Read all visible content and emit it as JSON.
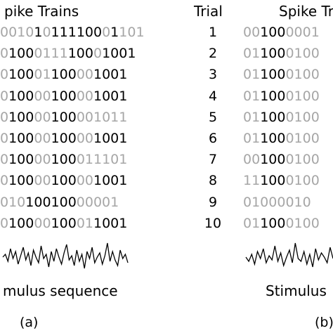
{
  "left": {
    "header": "pike Trains",
    "rows": [
      [
        [
          "g",
          "0010"
        ],
        [
          "k",
          "1"
        ],
        [
          "g",
          "0"
        ],
        [
          "k",
          "111"
        ],
        [
          "k",
          "100"
        ],
        [
          "g",
          "0"
        ],
        [
          "k",
          "1"
        ],
        [
          "g",
          "101"
        ]
      ],
      [
        [
          "g",
          "0"
        ],
        [
          "k",
          "100"
        ],
        [
          "g",
          "0111"
        ],
        [
          "k",
          "100"
        ],
        [
          "g",
          "0"
        ],
        [
          "k",
          "100"
        ],
        [
          "k",
          "1"
        ]
      ],
      [
        [
          "g",
          "0"
        ],
        [
          "k",
          "100"
        ],
        [
          "g",
          "01"
        ],
        [
          "k",
          "100"
        ],
        [
          "g",
          "00"
        ],
        [
          "k",
          "100"
        ],
        [
          "k",
          "1"
        ]
      ],
      [
        [
          "g",
          "0"
        ],
        [
          "k",
          "100"
        ],
        [
          "g",
          "00"
        ],
        [
          "k",
          "100"
        ],
        [
          "g",
          "00"
        ],
        [
          "k",
          "100"
        ],
        [
          "k",
          "1"
        ]
      ],
      [
        [
          "g",
          "0"
        ],
        [
          "k",
          "100"
        ],
        [
          "g",
          "00"
        ],
        [
          "k",
          "100"
        ],
        [
          "g",
          "0"
        ],
        [
          "g",
          "01011"
        ]
      ],
      [
        [
          "g",
          "0"
        ],
        [
          "k",
          "100"
        ],
        [
          "g",
          "00"
        ],
        [
          "k",
          "100"
        ],
        [
          "g",
          "00"
        ],
        [
          "k",
          "100"
        ],
        [
          "k",
          "1"
        ]
      ],
      [
        [
          "g",
          "0"
        ],
        [
          "k",
          "100"
        ],
        [
          "g",
          "00"
        ],
        [
          "k",
          "100"
        ],
        [
          "g",
          "011101"
        ]
      ],
      [
        [
          "g",
          "0"
        ],
        [
          "k",
          "100"
        ],
        [
          "g",
          "00"
        ],
        [
          "k",
          "100"
        ],
        [
          "g",
          "00"
        ],
        [
          "k",
          "100"
        ],
        [
          "k",
          "1"
        ]
      ],
      [
        [
          "g",
          "010"
        ],
        [
          "k",
          "100100"
        ],
        [
          "g",
          "00001"
        ]
      ],
      [
        [
          "g",
          "0"
        ],
        [
          "k",
          "100"
        ],
        [
          "g",
          "00"
        ],
        [
          "k",
          "100"
        ],
        [
          "g",
          "01"
        ],
        [
          "k",
          "100"
        ],
        [
          "k",
          "1"
        ]
      ]
    ],
    "caption": "mulus sequence",
    "label": "(a)"
  },
  "trials": {
    "header": "Trial",
    "numbers": [
      "1",
      "2",
      "3",
      "4",
      "5",
      "6",
      "7",
      "8",
      "9",
      "10"
    ]
  },
  "right": {
    "header": "Spike Tr",
    "rows": [
      [
        [
          "g",
          "00"
        ],
        [
          "k",
          "100"
        ],
        [
          "g",
          "0001"
        ]
      ],
      [
        [
          "g",
          "01"
        ],
        [
          "k",
          "100"
        ],
        [
          "g",
          "0100"
        ]
      ],
      [
        [
          "g",
          "01"
        ],
        [
          "k",
          "100"
        ],
        [
          "g",
          "0100"
        ]
      ],
      [
        [
          "g",
          "01"
        ],
        [
          "k",
          "100"
        ],
        [
          "g",
          "0100"
        ]
      ],
      [
        [
          "g",
          "01"
        ],
        [
          "k",
          "100"
        ],
        [
          "g",
          "0100"
        ]
      ],
      [
        [
          "g",
          "01"
        ],
        [
          "k",
          "100"
        ],
        [
          "g",
          "0100"
        ]
      ],
      [
        [
          "g",
          "00"
        ],
        [
          "k",
          "100"
        ],
        [
          "g",
          "0100"
        ]
      ],
      [
        [
          "g",
          "11"
        ],
        [
          "k",
          "100"
        ],
        [
          "g",
          "0100"
        ]
      ],
      [
        [
          "g",
          "0100"
        ],
        [
          "g",
          "0010"
        ]
      ],
      [
        [
          "g",
          "01"
        ],
        [
          "k",
          "100"
        ],
        [
          "g",
          "0100"
        ]
      ]
    ],
    "caption": "Stimulus",
    "label": "(b)"
  },
  "stimulus": {
    "left_trace": [
      0,
      -4,
      6,
      -12,
      2,
      -8,
      10,
      -2,
      -14,
      4,
      -6,
      12,
      -10,
      0,
      8,
      -16,
      2,
      -4,
      14,
      -8,
      6,
      -12,
      0,
      10,
      -6,
      -18,
      4,
      -2,
      12,
      -10,
      6,
      -4,
      16,
      -8,
      2,
      -14,
      8,
      0,
      -6,
      10,
      -2,
      -20,
      6,
      -8,
      4,
      12,
      -10,
      2,
      -4,
      8
    ],
    "right_trace": [
      0,
      6,
      -4,
      10,
      -8,
      2,
      -12,
      8,
      -2,
      4,
      -16,
      6,
      -6,
      12,
      0,
      -10,
      8,
      -20,
      2,
      6,
      -8,
      10,
      -4,
      14,
      -12,
      4,
      -6,
      0,
      8,
      -14,
      2
    ]
  }
}
